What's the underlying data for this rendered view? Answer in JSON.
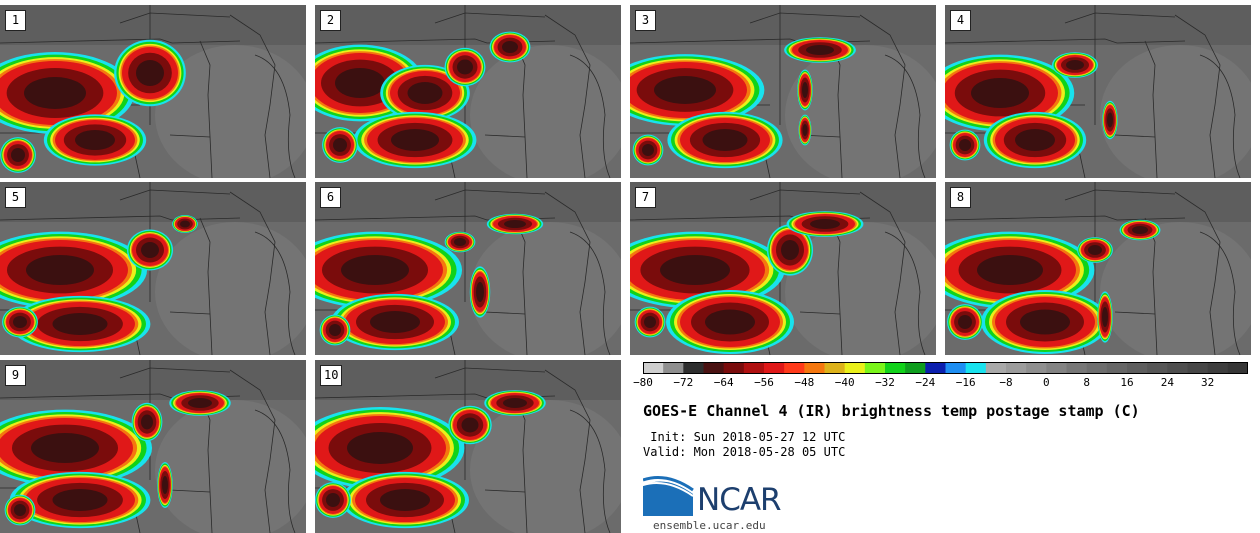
{
  "title": "GOES-E Channel 4 (IR) brightness temp postage stamp (C)",
  "init_label": " Init: Sun 2018-05-27 12 UTC",
  "valid_label": "Valid: Mon 2018-05-28 05 UTC",
  "logo": {
    "text": "NCAR",
    "url": "ensemble.ucar.edu"
  },
  "panels": [
    {
      "label": "1"
    },
    {
      "label": "2"
    },
    {
      "label": "3"
    },
    {
      "label": "4"
    },
    {
      "label": "5"
    },
    {
      "label": "6"
    },
    {
      "label": "7"
    },
    {
      "label": "8"
    },
    {
      "label": "9"
    },
    {
      "label": "10"
    }
  ],
  "colorbar": {
    "min": -80,
    "max": 40,
    "tick_labels": [
      "−80",
      "−72",
      "−64",
      "−56",
      "−48",
      "−40",
      "−32",
      "−24",
      "−16",
      "−8",
      "0",
      "8",
      "16",
      "24",
      "32"
    ],
    "tick_values": [
      -80,
      -72,
      -64,
      -56,
      -48,
      -40,
      -32,
      -24,
      -16,
      -8,
      0,
      8,
      16,
      24,
      32
    ],
    "colors": [
      "#cfcfcf",
      "#8f8f8f",
      "#2e2e2e",
      "#4a1212",
      "#7a0c0c",
      "#b01010",
      "#e01818",
      "#ff3a1a",
      "#f5770f",
      "#ddb21a",
      "#eaf01a",
      "#7af51a",
      "#11d21a",
      "#0e9e1e",
      "#0b1fae",
      "#1e8ef2",
      "#19e2ee",
      "#a9a9a9",
      "#9c9c9c",
      "#8f8f8f",
      "#838383",
      "#777777",
      "#6e6e6e",
      "#666666",
      "#5e5e5e",
      "#565656",
      "#4e4e4e",
      "#464646",
      "#3e3e3e",
      "#363636"
    ]
  }
}
